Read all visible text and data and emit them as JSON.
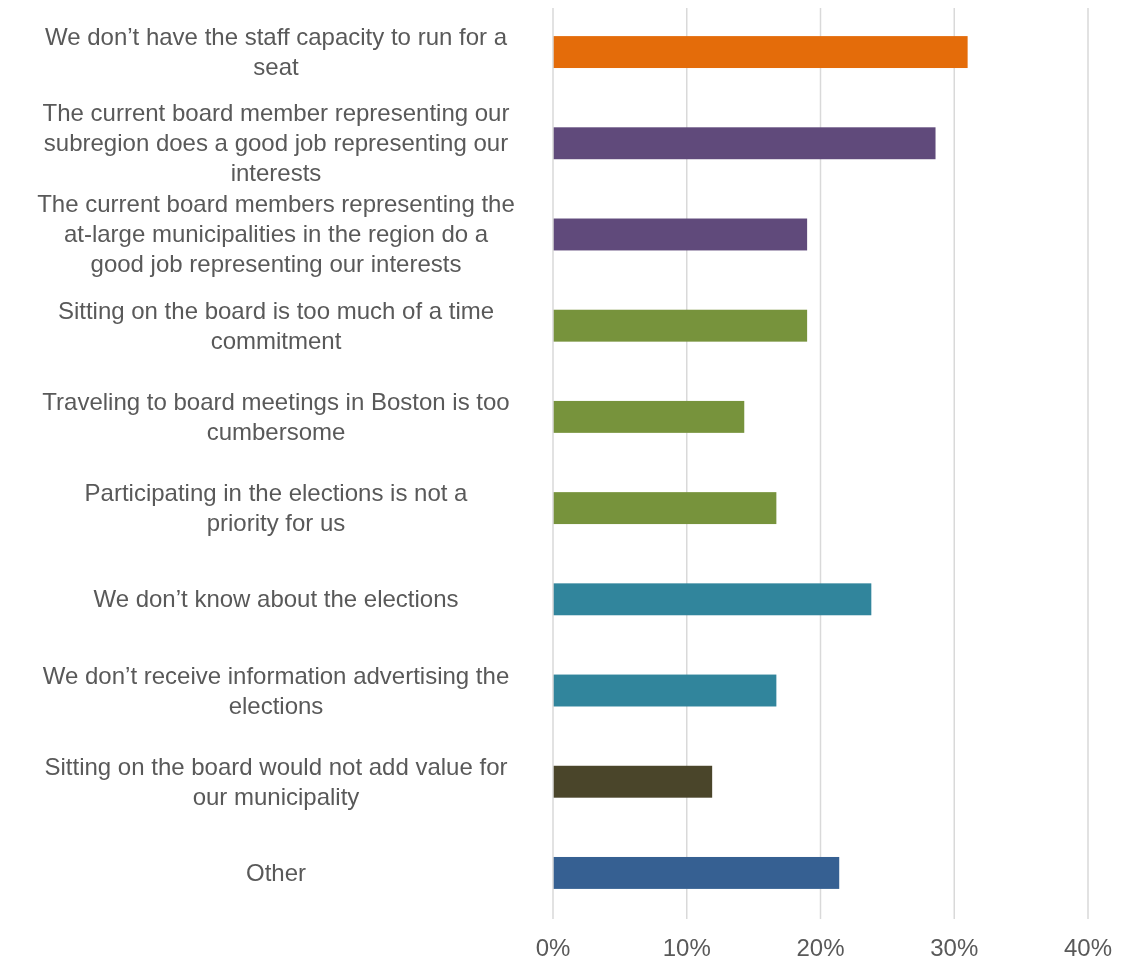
{
  "chart_data": {
    "type": "bar",
    "orientation": "horizontal",
    "grid": "x",
    "categories": [
      "We don’t have the staff capacity to run for a seat",
      "The current board member representing our subregion does a good job representing our interests",
      "The current board members representing the at-large municipalities in the region do a good job representing our interests",
      "Sitting on the board is too much of a time commitment",
      "Traveling to board meetings in Boston is too cumbersome",
      "Participating in the elections is not a priority for us",
      "We don’t know about the elections",
      "We don’t receive information advertising the elections",
      "Sitting on the board would not add value for our municipality",
      "Other"
    ],
    "values": [
      31,
      28.6,
      19,
      19,
      14.3,
      16.7,
      23.8,
      16.7,
      11.9,
      21.4
    ],
    "colors": [
      "#e46c0a",
      "#604a7b",
      "#604a7b",
      "#77933c",
      "#77933c",
      "#77933c",
      "#31859c",
      "#31859c",
      "#4a452a",
      "#366092"
    ],
    "xlim": [
      0,
      40
    ],
    "xticks": [
      {
        "value": 0,
        "label": "0%"
      },
      {
        "value": 10,
        "label": "10%"
      },
      {
        "value": 20,
        "label": "20%"
      },
      {
        "value": 30,
        "label": "30%"
      },
      {
        "value": 40,
        "label": "40%"
      }
    ]
  }
}
